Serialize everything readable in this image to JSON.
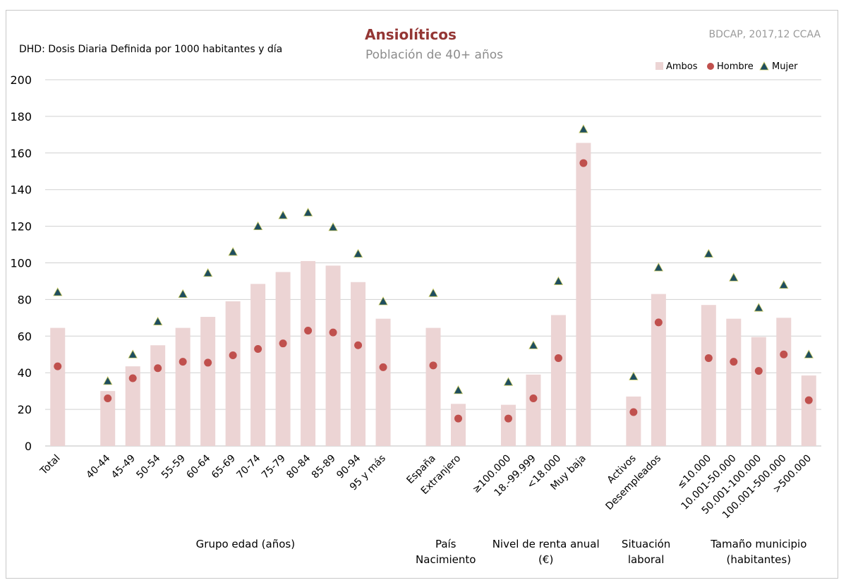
{
  "chart_data": {
    "type": "bar",
    "title": "Ansiolíticos",
    "subtitle": "Población de 40+ años",
    "source": "BDCAP, 2017,12 CCAA",
    "note": "DHD: Dosis Diaria Definida por 1000 habitantes  y día",
    "ylim": [
      0,
      200
    ],
    "yticks": [
      0,
      20,
      40,
      60,
      80,
      100,
      120,
      140,
      160,
      180,
      200
    ],
    "grid": true,
    "legend_position": "top-right",
    "legend": [
      {
        "name": "Ambos",
        "marker": "bar",
        "color": "#ecd4d4"
      },
      {
        "name": "Hombre",
        "marker": "circle",
        "color": "#c0504d"
      },
      {
        "name": "Mujer",
        "marker": "triangle",
        "color": "#1f4e5f"
      }
    ],
    "categories": [
      "Total",
      "",
      "40-44",
      "45-49",
      "50-54",
      "55-59",
      "60-64",
      "65-69",
      "70-74",
      "75-79",
      "80-84",
      "85-89",
      "90-94",
      "95 y más",
      "",
      "España",
      "Extranjero",
      "",
      "≥100.000",
      "18.-99.999",
      "<18.000",
      "Muy baja",
      "",
      "Activos",
      "Desempleados",
      "",
      "≤10.000",
      "10.001-50.000",
      "50.001-100.000",
      "100.001-500.000",
      ">500.000"
    ],
    "series": [
      {
        "name": "Ambos",
        "values": [
          64.5,
          null,
          30,
          43.5,
          55,
          64.5,
          70.5,
          79,
          88.5,
          95,
          101,
          98.5,
          89.5,
          69.5,
          null,
          64.5,
          23,
          null,
          22.5,
          39,
          71.5,
          165.5,
          null,
          27,
          83,
          null,
          77,
          69.5,
          59.5,
          70,
          38.5
        ]
      },
      {
        "name": "Hombre",
        "values": [
          43.5,
          null,
          26,
          37,
          42.5,
          46,
          45.5,
          49.5,
          53,
          56,
          63,
          62,
          55,
          43,
          null,
          44,
          15,
          null,
          15,
          26,
          48,
          154.5,
          null,
          18.5,
          67.5,
          null,
          48,
          46,
          41,
          50,
          25
        ]
      },
      {
        "name": "Mujer",
        "values": [
          84,
          null,
          35.5,
          50,
          68,
          83,
          94.5,
          106,
          120,
          126,
          127.5,
          119.5,
          105,
          79,
          null,
          83.5,
          30.5,
          null,
          35,
          55,
          90,
          173,
          null,
          38,
          97.5,
          null,
          105,
          92,
          75.5,
          88,
          50
        ]
      }
    ],
    "groups": [
      {
        "lines": [
          "Grupo edad (años)"
        ],
        "from": 2,
        "to": 13
      },
      {
        "lines": [
          "País",
          "Nacimiento"
        ],
        "from": 15,
        "to": 16
      },
      {
        "lines": [
          "Nivel de renta anual",
          "(€)"
        ],
        "from": 18,
        "to": 21
      },
      {
        "lines": [
          "Situación",
          "laboral"
        ],
        "from": 23,
        "to": 24
      },
      {
        "lines": [
          "Tamaño municipio",
          "(habitantes)"
        ],
        "from": 26,
        "to": 30
      }
    ]
  }
}
